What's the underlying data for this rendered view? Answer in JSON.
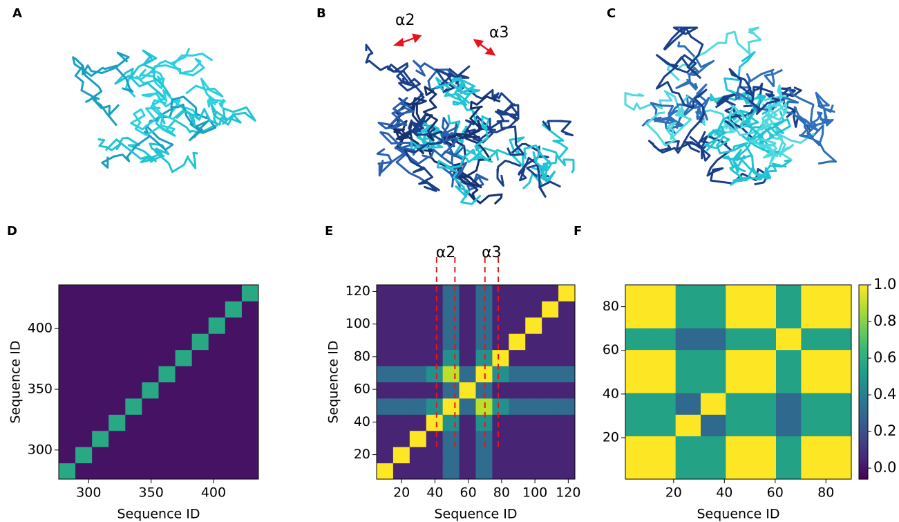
{
  "panels": [
    {
      "label": "A"
    },
    {
      "label": "B",
      "annotations": [
        "α2",
        "α3"
      ]
    },
    {
      "label": "C"
    }
  ],
  "chart_data": [
    {
      "type": "heatmap",
      "panel": "D",
      "xlabel": "Sequence ID",
      "ylabel": "Sequence ID",
      "xlim": [
        276,
        436
      ],
      "ylim": [
        276,
        436
      ],
      "xticks": [
        300,
        350,
        400
      ],
      "yticks": [
        300,
        350,
        400
      ],
      "values": [
        [
          0.6,
          0.05,
          0.05,
          0.05,
          0.05,
          0.05,
          0.05,
          0.05,
          0.05,
          0.05,
          0.05,
          0.05
        ],
        [
          0.05,
          0.6,
          0.05,
          0.05,
          0.05,
          0.05,
          0.05,
          0.05,
          0.05,
          0.05,
          0.05,
          0.05
        ],
        [
          0.05,
          0.05,
          0.6,
          0.05,
          0.05,
          0.05,
          0.05,
          0.05,
          0.05,
          0.05,
          0.05,
          0.05
        ],
        [
          0.05,
          0.05,
          0.05,
          0.6,
          0.05,
          0.05,
          0.05,
          0.05,
          0.05,
          0.05,
          0.05,
          0.05
        ],
        [
          0.05,
          0.05,
          0.05,
          0.05,
          0.6,
          0.05,
          0.05,
          0.05,
          0.05,
          0.05,
          0.05,
          0.05
        ],
        [
          0.05,
          0.05,
          0.05,
          0.05,
          0.05,
          0.6,
          0.05,
          0.05,
          0.05,
          0.05,
          0.05,
          0.05
        ],
        [
          0.05,
          0.05,
          0.05,
          0.05,
          0.05,
          0.05,
          0.6,
          0.05,
          0.05,
          0.05,
          0.05,
          0.05
        ],
        [
          0.05,
          0.05,
          0.05,
          0.05,
          0.05,
          0.05,
          0.05,
          0.6,
          0.05,
          0.05,
          0.05,
          0.05
        ],
        [
          0.05,
          0.05,
          0.05,
          0.05,
          0.05,
          0.05,
          0.05,
          0.05,
          0.6,
          0.05,
          0.05,
          0.05
        ],
        [
          0.05,
          0.05,
          0.05,
          0.05,
          0.05,
          0.05,
          0.05,
          0.05,
          0.05,
          0.6,
          0.05,
          0.05
        ],
        [
          0.05,
          0.05,
          0.05,
          0.05,
          0.05,
          0.05,
          0.05,
          0.05,
          0.05,
          0.05,
          0.6,
          0.05
        ],
        [
          0.05,
          0.05,
          0.05,
          0.05,
          0.05,
          0.05,
          0.05,
          0.05,
          0.05,
          0.05,
          0.05,
          0.6
        ]
      ]
    },
    {
      "type": "heatmap",
      "panel": "E",
      "xlabel": "Sequence ID",
      "ylabel": "Sequence ID",
      "xlim": [
        5,
        124
      ],
      "ylim": [
        5,
        124
      ],
      "xticks": [
        20,
        40,
        60,
        80,
        100,
        120
      ],
      "yticks": [
        20,
        40,
        60,
        80,
        100,
        120
      ],
      "guides": [
        41,
        52,
        70,
        78
      ],
      "annotations": [
        {
          "text": "α2",
          "x": [
            41,
            52
          ]
        },
        {
          "text": "α3",
          "x": [
            70,
            78
          ]
        }
      ],
      "values": [
        [
          1,
          0.1,
          0.1,
          0.1,
          0.35,
          0.1,
          0.35,
          0.1,
          0.1,
          0.1,
          0.1,
          0.1
        ],
        [
          0.1,
          1,
          0.1,
          0.1,
          0.35,
          0.1,
          0.35,
          0.1,
          0.1,
          0.1,
          0.1,
          0.1
        ],
        [
          0.1,
          0.1,
          1,
          0.1,
          0.35,
          0.1,
          0.35,
          0.1,
          0.1,
          0.1,
          0.1,
          0.1
        ],
        [
          0.1,
          0.1,
          0.1,
          1,
          0.5,
          0.1,
          0.5,
          0.1,
          0.1,
          0.1,
          0.1,
          0.1
        ],
        [
          0.35,
          0.35,
          0.35,
          0.5,
          1,
          0.35,
          0.9,
          0.5,
          0.35,
          0.35,
          0.35,
          0.35
        ],
        [
          0.1,
          0.1,
          0.1,
          0.1,
          0.35,
          1,
          0.35,
          0.1,
          0.1,
          0.1,
          0.1,
          0.1
        ],
        [
          0.35,
          0.35,
          0.35,
          0.5,
          0.9,
          0.35,
          1,
          0.5,
          0.35,
          0.35,
          0.35,
          0.35
        ],
        [
          0.1,
          0.1,
          0.1,
          0.1,
          0.5,
          0.1,
          0.5,
          1,
          0.1,
          0.1,
          0.1,
          0.1
        ],
        [
          0.1,
          0.1,
          0.1,
          0.1,
          0.35,
          0.1,
          0.35,
          0.1,
          1,
          0.1,
          0.1,
          0.1
        ],
        [
          0.1,
          0.1,
          0.1,
          0.1,
          0.35,
          0.1,
          0.35,
          0.1,
          0.1,
          1,
          0.1,
          0.1
        ],
        [
          0.1,
          0.1,
          0.1,
          0.1,
          0.35,
          0.1,
          0.35,
          0.1,
          0.1,
          0.1,
          1,
          0.1
        ],
        [
          0.1,
          0.1,
          0.1,
          0.1,
          0.35,
          0.1,
          0.35,
          0.1,
          0.1,
          0.1,
          0.1,
          1
        ]
      ]
    },
    {
      "type": "heatmap",
      "panel": "F",
      "xlabel": "Sequence ID",
      "xlim": [
        1,
        90
      ],
      "ylim": [
        1,
        90
      ],
      "xticks": [
        20,
        40,
        60,
        80
      ],
      "yticks": [
        20,
        40,
        60,
        80
      ],
      "clim": [
        -0.06,
        1.0
      ],
      "cticks": [
        {
          "value": 0,
          "label": "0.0"
        },
        {
          "value": 0.2,
          "label": "0.2"
        },
        {
          "value": 0.4,
          "label": "0.4"
        },
        {
          "value": 0.6,
          "label": "0.6"
        },
        {
          "value": 0.8,
          "label": "0.8"
        },
        {
          "value": 1,
          "label": "1.0"
        }
      ],
      "values": [
        [
          1,
          1,
          0.55,
          0.55,
          1,
          1,
          0.55,
          1,
          1
        ],
        [
          1,
          1,
          0.55,
          0.55,
          1,
          1,
          0.55,
          1,
          1
        ],
        [
          0.55,
          0.55,
          1,
          0.3,
          0.55,
          0.55,
          0.3,
          0.55,
          0.55
        ],
        [
          0.55,
          0.55,
          0.3,
          1,
          0.55,
          0.55,
          0.3,
          0.55,
          0.55
        ],
        [
          1,
          1,
          0.55,
          0.55,
          1,
          1,
          0.55,
          1,
          1
        ],
        [
          1,
          1,
          0.55,
          0.55,
          1,
          1,
          0.55,
          1,
          1
        ],
        [
          0.55,
          0.55,
          0.3,
          0.3,
          0.55,
          0.55,
          1,
          0.55,
          0.55
        ],
        [
          1,
          1,
          0.55,
          0.55,
          1,
          1,
          0.55,
          1,
          1
        ],
        [
          1,
          1,
          0.55,
          0.55,
          1,
          1,
          0.55,
          1,
          1
        ]
      ]
    }
  ]
}
